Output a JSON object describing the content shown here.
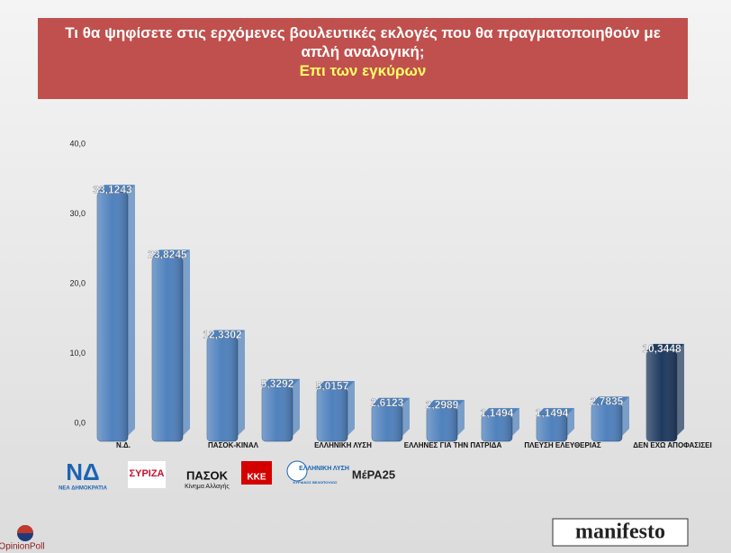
{
  "chart_data": {
    "type": "bar",
    "title": "Τι θα ψηφίσετε στις ερχόμενες βουλευτικές εκλογές που θα πραγματοποιηθούν με απλή αναλογική;",
    "subtitle": "Επι των εγκύρων",
    "categories": [
      "Ν.Δ.",
      null,
      "ΠΑΣΟΚ-ΚΙΝΑΛ",
      null,
      "ΕΛΛΗΝΙΚΗ ΛΥΣΗ",
      null,
      "ΕΛΛΗΝΕΣ ΓΙΑ ΤΗΝ ΠΑΤΡΙΔΑ",
      null,
      "ΠΛΕΥΣΗ ΕΛΕΥΘΕΡΙΑΣ",
      null,
      "ΔΕΝ ΕΧΩ ΑΠΟΦΑΣΙΣΕΙ"
    ],
    "values": [
      33.1243,
      23.8245,
      12.3302,
      5.3292,
      5.0157,
      2.6123,
      2.2989,
      1.1494,
      1.1494,
      2.7835,
      10.3448
    ],
    "value_labels": [
      "33,1243",
      "23,8245",
      "12,3302",
      "5,3292",
      "5,0157",
      "2,6123",
      "2,2989",
      "1,1494",
      "1,1494",
      "2,7835",
      "10,3448"
    ],
    "colors": [
      "#4f81bd",
      "#4f81bd",
      "#4f81bd",
      "#4f81bd",
      "#4f81bd",
      "#4f81bd",
      "#4f81bd",
      "#4f81bd",
      "#4f81bd",
      "#4f81bd",
      "#1f3a5f"
    ],
    "ylim": [
      0,
      40
    ],
    "yticks": [
      {
        "value": 0,
        "label": "0,0"
      },
      {
        "value": 10,
        "label": "10,0"
      },
      {
        "value": 20,
        "label": "20,0"
      },
      {
        "value": 30,
        "label": "30,0"
      },
      {
        "value": 40,
        "label": "40,0"
      }
    ],
    "grid": false
  },
  "logos": [
    "ΝΔ",
    "ΝΕΑ ΔΗΜΟΚΡΑΤΙΑ",
    "ΣΥΡΙΖΑ",
    "ΠΑΣΟΚ",
    "Κίνημα Αλλαγής",
    "ΚΚΕ",
    "ΕΛΛΗΝΙΚΗ ΛΥΣΗ",
    "ΚΥΡΙΑΚΟΣ ΒΕΛΟΠΟΥΛΟΣ",
    "ΜέΡΑ25"
  ],
  "source": "OpinionPoll",
  "publisher": "manifesto"
}
